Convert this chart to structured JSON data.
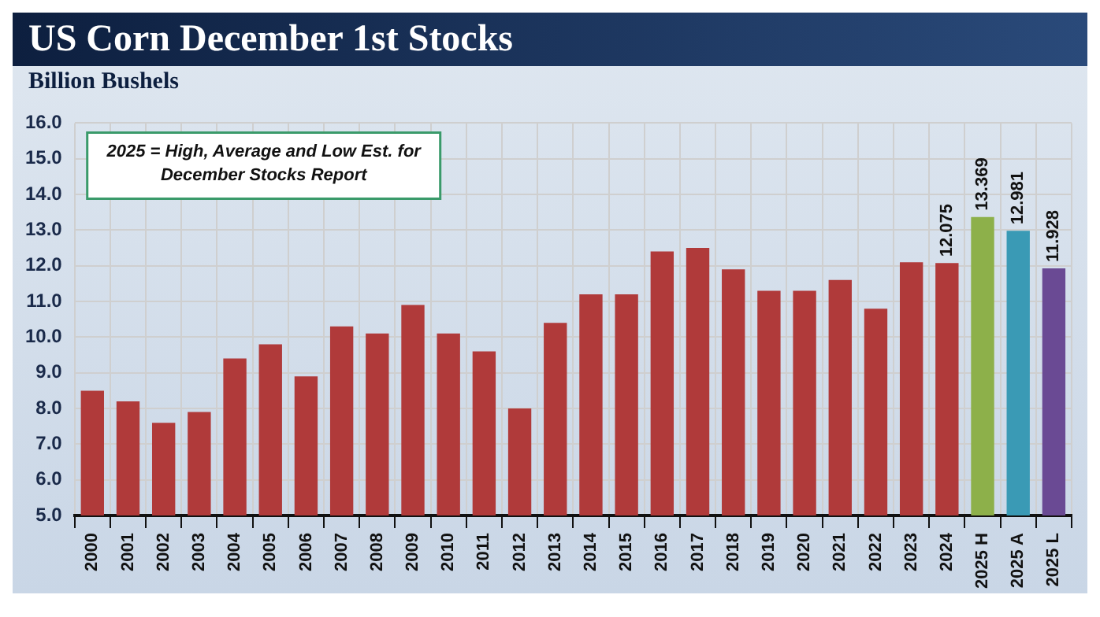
{
  "chart_data": {
    "type": "bar",
    "title": "US Corn December 1st Stocks",
    "subtitle": "Billion Bushels",
    "categories": [
      "2000",
      "2001",
      "2002",
      "2003",
      "2004",
      "2005",
      "2006",
      "2007",
      "2008",
      "2009",
      "2010",
      "2011",
      "2012",
      "2013",
      "2014",
      "2015",
      "2016",
      "2017",
      "2018",
      "2019",
      "2020",
      "2021",
      "2022",
      "2023",
      "2024",
      "2025 H",
      "2025 A",
      "2025 L"
    ],
    "values": [
      8.5,
      8.2,
      7.6,
      7.9,
      9.4,
      9.8,
      8.9,
      10.3,
      10.1,
      10.9,
      10.1,
      9.6,
      8.0,
      10.4,
      11.2,
      11.2,
      12.4,
      12.5,
      11.9,
      11.3,
      11.3,
      11.6,
      10.8,
      12.1,
      12.075,
      13.369,
      12.981,
      11.928
    ],
    "colors": [
      "#b03a3a",
      "#b03a3a",
      "#b03a3a",
      "#b03a3a",
      "#b03a3a",
      "#b03a3a",
      "#b03a3a",
      "#b03a3a",
      "#b03a3a",
      "#b03a3a",
      "#b03a3a",
      "#b03a3a",
      "#b03a3a",
      "#b03a3a",
      "#b03a3a",
      "#b03a3a",
      "#b03a3a",
      "#b03a3a",
      "#b03a3a",
      "#b03a3a",
      "#b03a3a",
      "#b03a3a",
      "#b03a3a",
      "#b03a3a",
      "#b03a3a",
      "#8db04a",
      "#3a9ab5",
      "#6a4a94"
    ],
    "value_labels": [
      null,
      null,
      null,
      null,
      null,
      null,
      null,
      null,
      null,
      null,
      null,
      null,
      null,
      null,
      null,
      null,
      null,
      null,
      null,
      null,
      null,
      null,
      null,
      null,
      "12.075",
      "13.369",
      "12.981",
      "11.928"
    ],
    "ylim": [
      5,
      16
    ],
    "yticks": [
      {
        "value": 5,
        "label": "5.0"
      },
      {
        "value": 6,
        "label": "6.0"
      },
      {
        "value": 7,
        "label": "7.0"
      },
      {
        "value": 8,
        "label": "8.0"
      },
      {
        "value": 9,
        "label": "9.0"
      },
      {
        "value": 10,
        "label": "10.0"
      },
      {
        "value": 11,
        "label": "11.0"
      },
      {
        "value": 12,
        "label": "12.0"
      },
      {
        "value": 13,
        "label": "13.0"
      },
      {
        "value": 14,
        "label": "14.0"
      },
      {
        "value": 15,
        "label": "15.0"
      },
      {
        "value": 16,
        "label": "16.0"
      }
    ],
    "grid": true,
    "annotations": [
      "2025 = High, Average and Low Est. for December Stocks Report"
    ]
  }
}
